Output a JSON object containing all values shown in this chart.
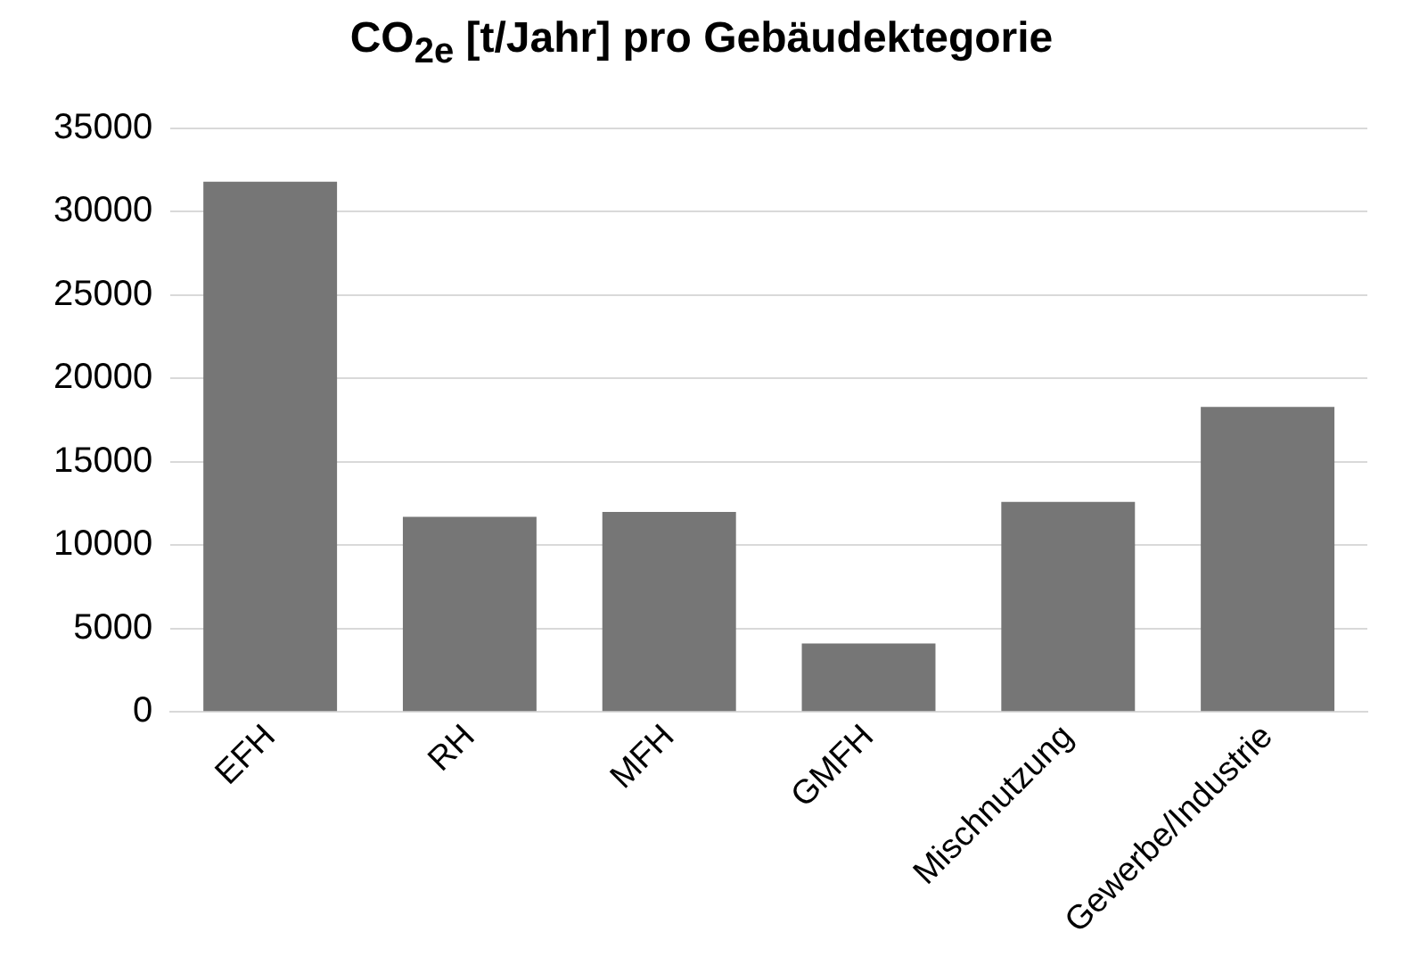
{
  "chart_data": {
    "type": "bar",
    "title": "CO$_{2e}$ [t/Jahr] pro Gebäudektegorie",
    "categories": [
      "EFH",
      "RH",
      "MFH",
      "GMFH",
      "Mischnutzung",
      "Gewerbe/Industrie"
    ],
    "values": [
      31800,
      11700,
      12000,
      4100,
      12600,
      18300
    ],
    "color": "#767676",
    "ylim": [
      0,
      35000
    ],
    "yticks": [
      0,
      5000,
      10000,
      15000,
      20000,
      25000,
      30000,
      35000
    ],
    "grid": "y",
    "legend": false
  }
}
